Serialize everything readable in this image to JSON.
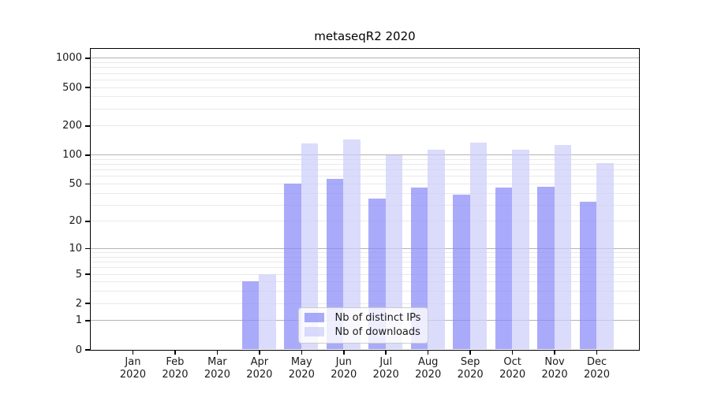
{
  "figure": {
    "title": "metaseqR2 2020"
  },
  "chart_data": {
    "type": "bar",
    "title": "metaseqR2 2020",
    "categories": [
      "Jan",
      "Feb",
      "Mar",
      "Apr",
      "May",
      "Jun",
      "Jul",
      "Aug",
      "Sep",
      "Oct",
      "Nov",
      "Dec"
    ],
    "category_year": "2020",
    "series": [
      {
        "name": "Nb of distinct IPs",
        "color": "#8989f8",
        "values": [
          0,
          0,
          0,
          4,
          50,
          56,
          35,
          45,
          38,
          45,
          46,
          32
        ]
      },
      {
        "name": "Nb of downloads",
        "color": "#cdcdfa",
        "values": [
          0,
          0,
          0,
          5,
          132,
          144,
          98,
          112,
          133,
          112,
          125,
          81
        ]
      }
    ],
    "bar_alpha": 0.72,
    "y_scale": "log1p",
    "y_ticks": [
      0,
      1,
      2,
      5,
      10,
      20,
      50,
      100,
      200,
      500,
      1000
    ],
    "y_minor_gridlines": [
      2,
      3,
      4,
      5,
      6,
      7,
      8,
      9,
      20,
      30,
      40,
      50,
      60,
      70,
      80,
      90,
      200,
      300,
      400,
      500,
      600,
      700,
      800,
      900
    ],
    "y_major_gridlines": [
      1,
      10,
      100,
      1000
    ],
    "ylim": [
      0,
      1250
    ],
    "xlabel": "",
    "ylabel": "",
    "grid": "horizontal",
    "legend_position": "lower center"
  },
  "colors": {
    "bar_ips": "#8989f8",
    "bar_downloads": "#cdcdfa",
    "grid_major": "#b3b3b3",
    "grid_minor": "#e9e9e9",
    "spine": "#000000",
    "text": "#1a1a1a"
  }
}
